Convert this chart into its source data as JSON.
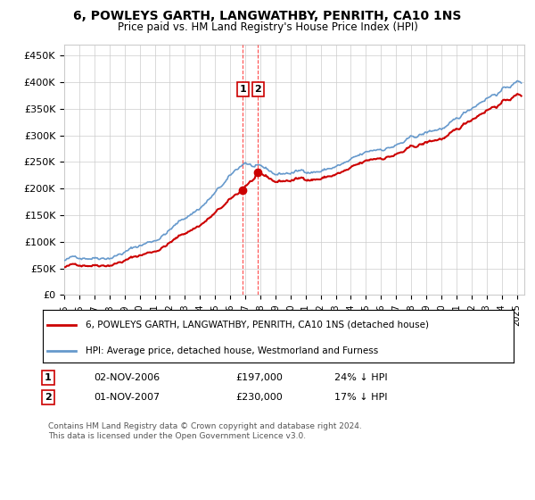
{
  "title": "6, POWLEYS GARTH, LANGWATHBY, PENRITH, CA10 1NS",
  "subtitle": "Price paid vs. HM Land Registry's House Price Index (HPI)",
  "ylim": [
    0,
    470000
  ],
  "yticks": [
    0,
    50000,
    100000,
    150000,
    200000,
    250000,
    300000,
    350000,
    400000,
    450000
  ],
  "ytick_labels": [
    "£0",
    "£50K",
    "£100K",
    "£150K",
    "£200K",
    "£250K",
    "£300K",
    "£350K",
    "£400K",
    "£450K"
  ],
  "xlim_start": 1995.0,
  "xlim_end": 2025.5,
  "transaction1_date": "02-NOV-2006",
  "transaction1_price": 197000,
  "transaction1_pct": "24% ↓ HPI",
  "transaction1_x": 2006.84,
  "transaction2_date": "01-NOV-2007",
  "transaction2_price": 230000,
  "transaction2_pct": "17% ↓ HPI",
  "transaction2_x": 2007.84,
  "legend_red": "6, POWLEYS GARTH, LANGWATHBY, PENRITH, CA10 1NS (detached house)",
  "legend_blue": "HPI: Average price, detached house, Westmorland and Furness",
  "footer": "Contains HM Land Registry data © Crown copyright and database right 2024.\nThis data is licensed under the Open Government Licence v3.0.",
  "red_color": "#cc0000",
  "blue_color": "#6699cc",
  "marker_box_color": "#cc0000"
}
